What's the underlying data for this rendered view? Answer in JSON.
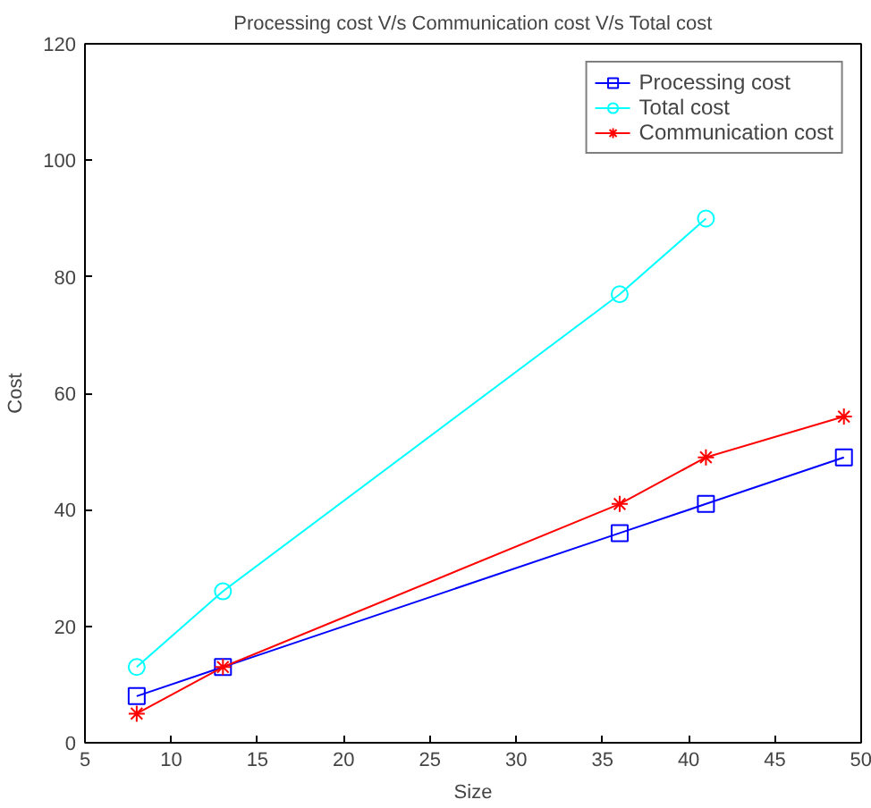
{
  "chart_data": {
    "type": "line",
    "title": "Processing cost V/s Communication cost V/s Total cost",
    "xlabel": "Size",
    "ylabel": "Cost",
    "x": [
      8,
      13,
      36,
      41,
      49
    ],
    "series": [
      {
        "name": "Processing cost",
        "color": "#0000ff",
        "marker": "square",
        "values": [
          8,
          13,
          36,
          41,
          49
        ]
      },
      {
        "name": "Total cost",
        "color": "#00ffff",
        "marker": "circle",
        "values": [
          13,
          26,
          77,
          90,
          null
        ]
      },
      {
        "name": "Communication cost",
        "color": "#ff0000",
        "marker": "cross",
        "values": [
          5,
          13,
          41,
          49,
          56
        ]
      }
    ],
    "xlim": [
      5,
      50
    ],
    "ylim": [
      0,
      120
    ],
    "xticks": [
      5,
      10,
      15,
      20,
      25,
      30,
      35,
      40,
      45,
      50
    ],
    "yticks": [
      0,
      20,
      40,
      60,
      80,
      100,
      120
    ],
    "grid": false,
    "legend": "top right",
    "line_style": "solid"
  }
}
